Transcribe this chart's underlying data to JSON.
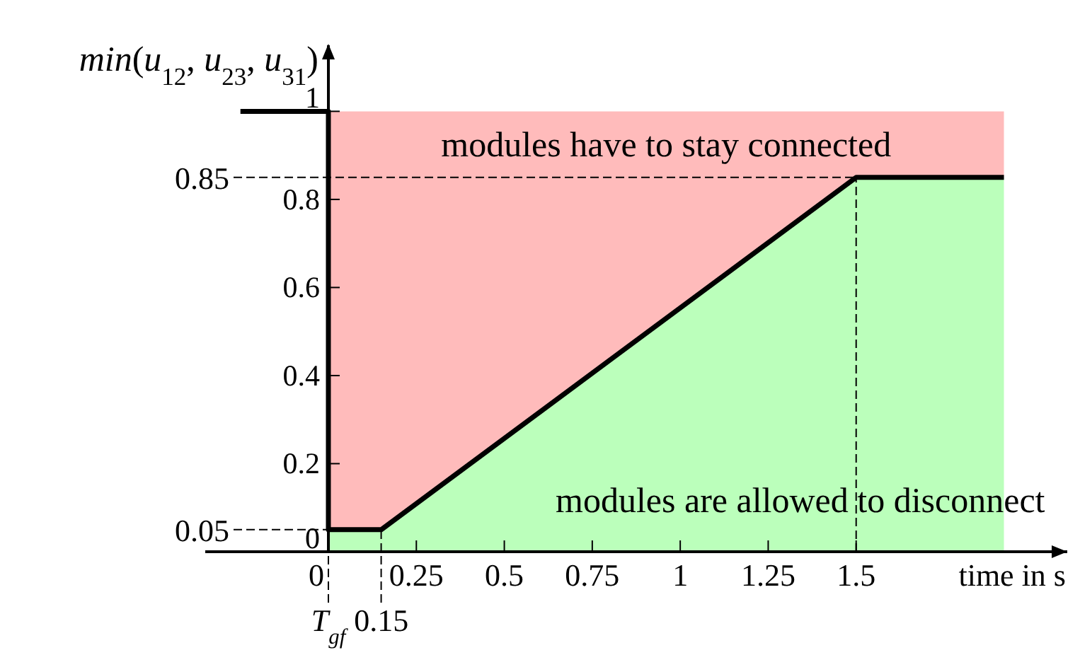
{
  "chart_data": {
    "type": "line",
    "xlabel": "time in s",
    "ylabel": "min(u$_{12}$, u$_{23}$, u$_{31}$)",
    "xlim": [
      -0.35,
      2.1
    ],
    "ylim": [
      0,
      1.15
    ],
    "xticks": [
      0,
      0.25,
      0.5,
      0.75,
      1,
      1.25,
      1.5
    ],
    "yticks": [
      0,
      0.2,
      0.4,
      0.6,
      0.8,
      1
    ],
    "stacked": true,
    "marker": "none",
    "line_style": "solid",
    "series": [
      {
        "type": "area",
        "color": "#bbffbb",
        "x": [
          0,
          0.15,
          1.5,
          1.92
        ],
        "values": [
          0.05,
          0.05,
          0.85,
          0.85
        ]
      },
      {
        "type": "area",
        "color": "#ffbbbb",
        "x": [
          0,
          0.15,
          1.5,
          1.92
        ],
        "values": [
          0.95,
          0.95,
          0.15,
          0.15
        ]
      },
      {
        "color": "#000000",
        "x": [
          -0.25,
          0,
          0,
          0.15,
          1.5,
          1.92
        ],
        "values": [
          1,
          1,
          0.05,
          0.05,
          0.85,
          0.85
        ]
      }
    ],
    "ref_lines": [
      {
        "axis": "y",
        "value": 0.85,
        "label": "0.85",
        "line_style": "dashed"
      },
      {
        "axis": "y",
        "value": 0.05,
        "label": "0.05",
        "line_style": "dashed"
      },
      {
        "axis": "x",
        "value": 0,
        "label": "T$_{gf}$",
        "line_style": "dashed"
      },
      {
        "axis": "x",
        "value": 0.15,
        "label": "0.15",
        "line_style": "dashed"
      },
      {
        "axis": "x",
        "value": 1.5,
        "label": null,
        "line_style": "dashed"
      }
    ],
    "annotations": [
      "modules have to stay connected",
      "modules are allowed to disconnect"
    ]
  }
}
